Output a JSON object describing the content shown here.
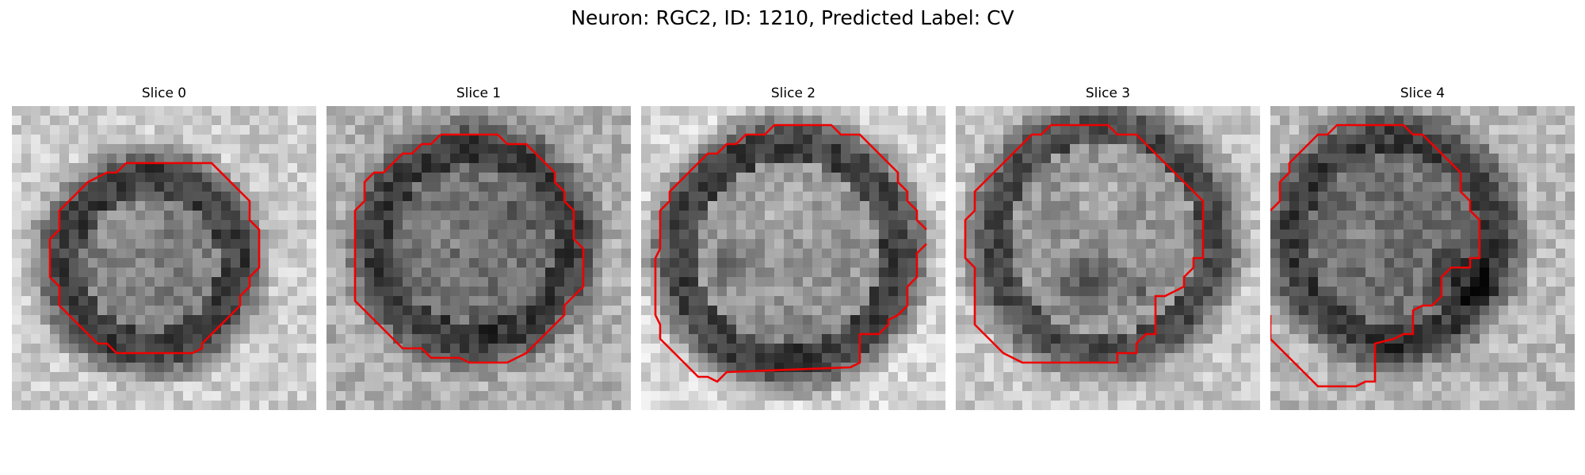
{
  "figure": {
    "title": "Neuron: RGC2, ID: 1210, Predicted Label: CV"
  },
  "contour_color": "#ee0000",
  "panels": [
    {
      "title": "Slice 0",
      "image_content": "grayscale microscopy crop of a round cell body with a dark ring, red contour around the cell"
    },
    {
      "title": "Slice 1",
      "image_content": "grayscale microscopy crop of a round cell body, red contour around the cell"
    },
    {
      "title": "Slice 2",
      "image_content": "grayscale microscopy crop of a round cell body with brighter center, red contour partially open"
    },
    {
      "title": "Slice 3",
      "image_content": "grayscale microscopy crop of a cell body with dark lower region, red contour around the cell"
    },
    {
      "title": "Slice 4",
      "image_content": "grayscale microscopy crop of a cell body with dark right region, red contour partially open"
    }
  ]
}
